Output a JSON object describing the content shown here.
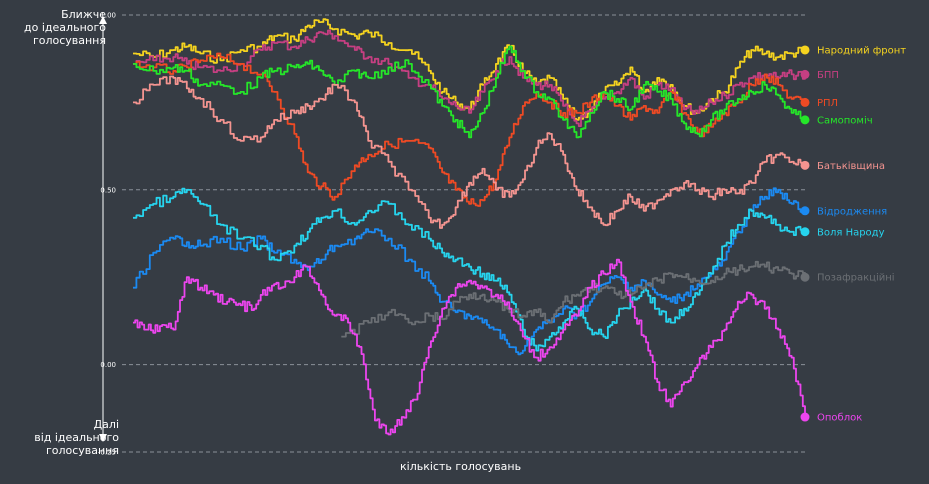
{
  "labels": {
    "y_top": "Ближче\nдо ідеального\nголосування",
    "y_bottom": "Далі\nвід ідеального\nголосування",
    "x": "кількість голосувань"
  },
  "chart_data": {
    "type": "line",
    "ylim": [
      -0.25,
      1.0
    ],
    "y_ticks": [
      "1.00",
      "0.50",
      "0.00",
      "-0.25"
    ],
    "x_range": [
      0,
      100
    ],
    "grid": true,
    "legend": "right",
    "series": [
      {
        "name": "Народний фронт",
        "color": "#f5d31f",
        "x": [
          0,
          3,
          6,
          8,
          10,
          13,
          16,
          19,
          21,
          24,
          26,
          28,
          30,
          33,
          35,
          38,
          41,
          44,
          46,
          48,
          50,
          52,
          54,
          56,
          58,
          60,
          62,
          64,
          66,
          68,
          70,
          72,
          74,
          76,
          78,
          80,
          82,
          84,
          86,
          88,
          90,
          92,
          94,
          96,
          98,
          100
        ],
        "y": [
          0.89,
          0.88,
          0.9,
          0.91,
          0.89,
          0.87,
          0.9,
          0.91,
          0.94,
          0.93,
          0.97,
          0.98,
          0.96,
          0.94,
          0.95,
          0.92,
          0.9,
          0.84,
          0.78,
          0.75,
          0.73,
          0.8,
          0.86,
          0.91,
          0.84,
          0.8,
          0.82,
          0.76,
          0.7,
          0.73,
          0.78,
          0.8,
          0.85,
          0.78,
          0.82,
          0.8,
          0.74,
          0.72,
          0.76,
          0.78,
          0.85,
          0.9,
          0.89,
          0.88,
          0.89,
          0.9
        ]
      },
      {
        "name": "БПП",
        "color": "#c63f82",
        "x": [
          0,
          3,
          6,
          8,
          10,
          13,
          16,
          19,
          21,
          24,
          26,
          28,
          30,
          33,
          35,
          38,
          41,
          44,
          46,
          48,
          50,
          52,
          54,
          56,
          58,
          60,
          62,
          64,
          66,
          68,
          70,
          72,
          74,
          76,
          78,
          80,
          82,
          84,
          86,
          88,
          90,
          92,
          94,
          96,
          98,
          100
        ],
        "y": [
          0.86,
          0.87,
          0.88,
          0.86,
          0.85,
          0.84,
          0.86,
          0.9,
          0.92,
          0.91,
          0.93,
          0.95,
          0.94,
          0.9,
          0.88,
          0.86,
          0.82,
          0.8,
          0.76,
          0.74,
          0.72,
          0.78,
          0.84,
          0.88,
          0.82,
          0.8,
          0.8,
          0.74,
          0.69,
          0.72,
          0.76,
          0.78,
          0.82,
          0.76,
          0.8,
          0.79,
          0.73,
          0.72,
          0.75,
          0.77,
          0.8,
          0.82,
          0.83,
          0.82,
          0.83,
          0.83
        ]
      },
      {
        "name": "РПЛ",
        "color": "#ef4a24",
        "x": [
          0,
          3,
          6,
          8,
          10,
          13,
          16,
          19,
          21,
          24,
          26,
          28,
          30,
          33,
          35,
          38,
          41,
          44,
          46,
          48,
          50,
          52,
          54,
          56,
          58,
          60,
          62,
          64,
          66,
          68,
          70,
          72,
          74,
          76,
          78,
          80,
          82,
          84,
          86,
          88,
          90,
          92,
          94,
          96,
          98,
          100
        ],
        "y": [
          0.86,
          0.85,
          0.84,
          0.85,
          0.87,
          0.88,
          0.86,
          0.83,
          0.78,
          0.66,
          0.55,
          0.51,
          0.48,
          0.57,
          0.6,
          0.63,
          0.64,
          0.62,
          0.55,
          0.5,
          0.46,
          0.47,
          0.53,
          0.65,
          0.74,
          0.78,
          0.75,
          0.72,
          0.72,
          0.75,
          0.78,
          0.74,
          0.7,
          0.74,
          0.72,
          0.78,
          0.72,
          0.66,
          0.68,
          0.72,
          0.75,
          0.8,
          0.83,
          0.8,
          0.76,
          0.75
        ]
      },
      {
        "name": "Самопоміч",
        "color": "#25e629",
        "x": [
          0,
          3,
          6,
          8,
          10,
          13,
          16,
          19,
          21,
          24,
          26,
          28,
          30,
          33,
          35,
          38,
          41,
          44,
          46,
          48,
          50,
          52,
          54,
          56,
          58,
          60,
          62,
          64,
          66,
          68,
          70,
          72,
          74,
          76,
          78,
          80,
          82,
          84,
          86,
          88,
          90,
          92,
          94,
          96,
          98,
          100
        ],
        "y": [
          0.86,
          0.84,
          0.85,
          0.84,
          0.8,
          0.8,
          0.78,
          0.82,
          0.84,
          0.85,
          0.86,
          0.84,
          0.8,
          0.84,
          0.82,
          0.85,
          0.86,
          0.8,
          0.74,
          0.7,
          0.65,
          0.72,
          0.82,
          0.91,
          0.84,
          0.78,
          0.76,
          0.7,
          0.65,
          0.72,
          0.78,
          0.76,
          0.73,
          0.8,
          0.78,
          0.76,
          0.69,
          0.66,
          0.7,
          0.73,
          0.76,
          0.78,
          0.8,
          0.77,
          0.72,
          0.7
        ]
      },
      {
        "name": "Батьківщина",
        "color": "#f49490",
        "x": [
          0,
          3,
          6,
          8,
          10,
          13,
          16,
          19,
          21,
          24,
          26,
          28,
          30,
          33,
          35,
          38,
          41,
          44,
          46,
          48,
          50,
          52,
          54,
          56,
          58,
          60,
          62,
          64,
          66,
          68,
          70,
          72,
          74,
          76,
          78,
          80,
          82,
          84,
          86,
          88,
          90,
          92,
          94,
          96,
          98,
          100
        ],
        "y": [
          0.75,
          0.8,
          0.82,
          0.79,
          0.76,
          0.7,
          0.64,
          0.65,
          0.7,
          0.72,
          0.74,
          0.76,
          0.8,
          0.75,
          0.64,
          0.58,
          0.5,
          0.42,
          0.4,
          0.45,
          0.52,
          0.56,
          0.5,
          0.48,
          0.53,
          0.62,
          0.66,
          0.6,
          0.5,
          0.45,
          0.4,
          0.44,
          0.48,
          0.44,
          0.47,
          0.5,
          0.52,
          0.5,
          0.48,
          0.5,
          0.49,
          0.52,
          0.58,
          0.6,
          0.58,
          0.57
        ]
      },
      {
        "name": "Відродження",
        "color": "#1b8af2",
        "x": [
          0,
          3,
          6,
          8,
          10,
          13,
          16,
          19,
          21,
          24,
          26,
          28,
          30,
          33,
          35,
          38,
          41,
          44,
          46,
          48,
          50,
          52,
          54,
          56,
          58,
          60,
          62,
          64,
          66,
          68,
          70,
          72,
          74,
          76,
          78,
          80,
          82,
          84,
          86,
          88,
          90,
          92,
          94,
          96,
          98,
          100
        ],
        "y": [
          0.22,
          0.32,
          0.36,
          0.35,
          0.34,
          0.36,
          0.33,
          0.36,
          0.32,
          0.3,
          0.27,
          0.3,
          0.34,
          0.36,
          0.38,
          0.36,
          0.3,
          0.24,
          0.18,
          0.15,
          0.14,
          0.12,
          0.1,
          0.05,
          0.04,
          0.1,
          0.12,
          0.16,
          0.14,
          0.18,
          0.23,
          0.25,
          0.22,
          0.24,
          0.2,
          0.18,
          0.2,
          0.23,
          0.26,
          0.3,
          0.38,
          0.44,
          0.48,
          0.5,
          0.46,
          0.44
        ]
      },
      {
        "name": "Воля Народу",
        "color": "#26d4ee",
        "x": [
          0,
          3,
          6,
          8,
          10,
          13,
          16,
          19,
          21,
          24,
          26,
          28,
          30,
          33,
          35,
          38,
          41,
          44,
          46,
          48,
          50,
          52,
          54,
          56,
          58,
          60,
          62,
          64,
          66,
          68,
          70,
          72,
          74,
          76,
          78,
          80,
          82,
          84,
          86,
          88,
          90,
          92,
          94,
          96,
          98,
          100
        ],
        "y": [
          0.42,
          0.46,
          0.48,
          0.5,
          0.46,
          0.4,
          0.36,
          0.34,
          0.3,
          0.34,
          0.38,
          0.42,
          0.44,
          0.4,
          0.44,
          0.46,
          0.4,
          0.36,
          0.32,
          0.3,
          0.28,
          0.26,
          0.24,
          0.2,
          0.1,
          0.04,
          0.08,
          0.12,
          0.16,
          0.1,
          0.08,
          0.14,
          0.18,
          0.22,
          0.16,
          0.12,
          0.16,
          0.2,
          0.26,
          0.34,
          0.4,
          0.44,
          0.42,
          0.4,
          0.38,
          0.38
        ]
      },
      {
        "name": "Позафракційні",
        "color": "#6b6f74",
        "x": [
          31,
          35,
          38,
          41,
          44,
          46,
          48,
          50,
          52,
          54,
          56,
          58,
          60,
          62,
          64,
          66,
          68,
          70,
          72,
          74,
          76,
          78,
          80,
          82,
          84,
          86,
          88,
          90,
          92,
          94,
          96,
          98,
          100
        ],
        "y": [
          0.08,
          0.12,
          0.15,
          0.12,
          0.14,
          0.13,
          0.18,
          0.2,
          0.2,
          0.18,
          0.15,
          0.14,
          0.15,
          0.12,
          0.18,
          0.2,
          0.22,
          0.22,
          0.2,
          0.2,
          0.22,
          0.24,
          0.26,
          0.25,
          0.24,
          0.24,
          0.26,
          0.27,
          0.28,
          0.28,
          0.27,
          0.26,
          0.25
        ]
      },
      {
        "name": "Опоблок",
        "color": "#ec45ee",
        "x": [
          0,
          2,
          4,
          6,
          8,
          10,
          12,
          14,
          16,
          18,
          20,
          22,
          24,
          26,
          28,
          30,
          32,
          34,
          36,
          38,
          40,
          42,
          44,
          46,
          48,
          50,
          52,
          54,
          56,
          58,
          60,
          62,
          64,
          66,
          68,
          70,
          72,
          74,
          76,
          78,
          80,
          82,
          84,
          86,
          88,
          90,
          92,
          94,
          96,
          98,
          100
        ],
        "y": [
          0.12,
          0.1,
          0.11,
          0.1,
          0.25,
          0.22,
          0.2,
          0.18,
          0.17,
          0.16,
          0.22,
          0.22,
          0.25,
          0.28,
          0.2,
          0.14,
          0.12,
          0.03,
          -0.16,
          -0.2,
          -0.15,
          -0.1,
          0.05,
          0.16,
          0.22,
          0.24,
          0.22,
          0.2,
          0.16,
          0.08,
          0.02,
          0.05,
          0.1,
          0.14,
          0.22,
          0.26,
          0.3,
          0.18,
          0.08,
          -0.05,
          -0.12,
          -0.05,
          0.0,
          0.05,
          0.1,
          0.18,
          0.2,
          0.16,
          0.1,
          0.02,
          -0.15
        ]
      }
    ]
  }
}
